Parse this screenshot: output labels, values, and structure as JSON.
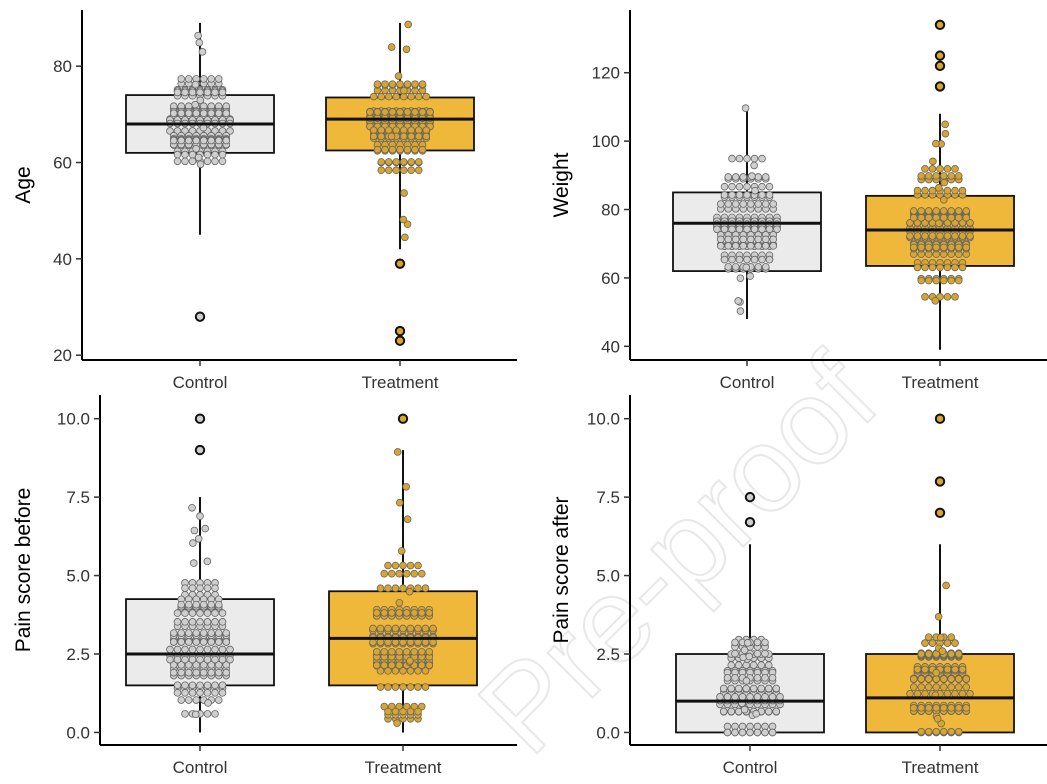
{
  "figure": {
    "watermark": "Pre-proof",
    "colors": {
      "control_box": "#ebebeb",
      "treatment_box": "#f0b83a",
      "control_point": "#cfcfcf",
      "treatment_point": "#d9a52c",
      "outline": "#111111"
    }
  },
  "chart_data": [
    {
      "type": "box",
      "ylabel": "Age",
      "categories": [
        "Control",
        "Treatment"
      ],
      "ylim": [
        19,
        90
      ],
      "yticks": [
        20,
        40,
        60,
        80
      ],
      "series": [
        {
          "name": "Control",
          "whisker_low": 45,
          "q1": 62,
          "median": 68,
          "q3": 74,
          "whisker_high": 89,
          "outliers": [
            28
          ]
        },
        {
          "name": "Treatment",
          "whisker_low": 42,
          "q1": 62.5,
          "median": 69,
          "q3": 73.5,
          "whisker_high": 89,
          "outliers": [
            39,
            25,
            23
          ]
        }
      ]
    },
    {
      "type": "box",
      "ylabel": "Weight",
      "categories": [
        "Control",
        "Treatment"
      ],
      "ylim": [
        36,
        136
      ],
      "yticks": [
        40,
        60,
        80,
        100,
        120
      ],
      "series": [
        {
          "name": "Control",
          "whisker_low": 48,
          "q1": 62,
          "median": 76,
          "q3": 85,
          "whisker_high": 110,
          "outliers": []
        },
        {
          "name": "Treatment",
          "whisker_low": 39,
          "q1": 63.5,
          "median": 74,
          "q3": 84,
          "whisker_high": 108,
          "outliers": [
            116,
            122,
            125,
            134
          ]
        }
      ]
    },
    {
      "type": "box",
      "ylabel": "Pain score before",
      "categories": [
        "Control",
        "Treatment"
      ],
      "ylim": [
        -0.4,
        10.5
      ],
      "yticks": [
        "0.0",
        "2.5",
        "5.0",
        "7.5",
        "10.0"
      ],
      "series": [
        {
          "name": "Control",
          "whisker_low": 0,
          "q1": 1.5,
          "median": 2.5,
          "q3": 4.25,
          "whisker_high": 7.5,
          "outliers": [
            9,
            10
          ]
        },
        {
          "name": "Treatment",
          "whisker_low": 0,
          "q1": 1.5,
          "median": 3,
          "q3": 4.5,
          "whisker_high": 9,
          "outliers": [
            10
          ]
        }
      ]
    },
    {
      "type": "box",
      "ylabel": "Pain score after",
      "categories": [
        "Control",
        "Treatment"
      ],
      "ylim": [
        -0.4,
        10.5
      ],
      "yticks": [
        "0.0",
        "2.5",
        "5.0",
        "7.5",
        "10.0"
      ],
      "series": [
        {
          "name": "Control",
          "whisker_low": 0,
          "q1": 0,
          "median": 1,
          "q3": 2.5,
          "whisker_high": 6,
          "outliers": [
            6.7,
            7.5
          ]
        },
        {
          "name": "Treatment",
          "whisker_low": 0,
          "q1": 0,
          "median": 1.1,
          "q3": 2.5,
          "whisker_high": 6,
          "outliers": [
            7,
            8,
            10
          ]
        }
      ]
    }
  ]
}
